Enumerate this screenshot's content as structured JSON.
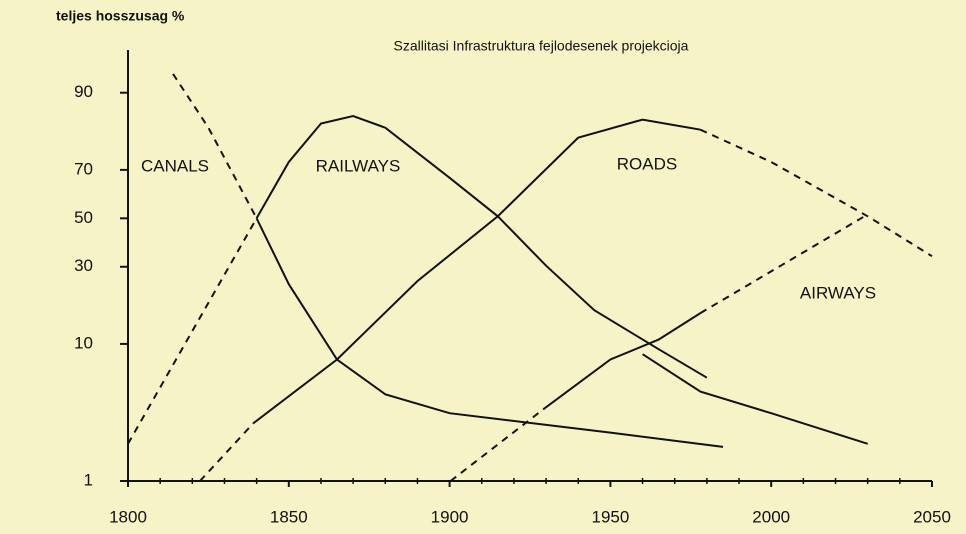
{
  "chart_data": {
    "type": "line",
    "title": "Szallitasi Infrastruktura fejlodesenek projekcioja",
    "y_label": "teljes hosszusag %",
    "y_scale": "logit",
    "xlim": [
      1800,
      2050
    ],
    "xticks": [
      1800,
      1850,
      1900,
      1950,
      2000,
      2050
    ],
    "x_minor_step": 10,
    "ylim": [
      1,
      95
    ],
    "yticks": [
      1,
      10,
      30,
      50,
      70,
      90
    ],
    "color": "#111111",
    "series": [
      {
        "name": "CANALS",
        "segments": [
          {
            "style": "dashed",
            "x": [
              1814,
              1825,
              1840
            ],
            "values": [
              92.6,
              83,
              50
            ]
          },
          {
            "style": "solid",
            "x": [
              1840,
              1850,
              1865,
              1880,
              1900,
              1950,
              1985
            ],
            "values": [
              50,
              24,
              7.8,
              4.4,
              3.2,
              2.3,
              1.8
            ]
          }
        ]
      },
      {
        "name": "RAILWAYS",
        "segments": [
          {
            "style": "dashed",
            "x": [
              1800,
              1840
            ],
            "values": [
              1.9,
              50
            ]
          },
          {
            "style": "solid",
            "x": [
              1840,
              1850,
              1860,
              1870,
              1880,
              1900,
              1915,
              1930,
              1945,
              1965,
              1980
            ],
            "values": [
              50,
              72.8,
              84,
              85.7,
              83,
              67,
              50.9,
              30.4,
              16.7,
              9.2,
              5.8
            ]
          },
          {
            "style": "solid",
            "x": [
              1960,
              1978,
              2000,
              2030
            ],
            "values": [
              8.5,
              4.6,
              3.2,
              1.9
            ]
          }
        ]
      },
      {
        "name": "ROADS",
        "segments": [
          {
            "style": "dashed",
            "x": [
              1822.4,
              1839
            ],
            "values": [
              1,
              2.7
            ]
          },
          {
            "style": "solid",
            "x": [
              1839,
              1865,
              1890,
              1915,
              1940,
              1960,
              1978
            ],
            "values": [
              2.7,
              7.8,
              25,
              50.9,
              80.4,
              84.9,
              82.5
            ]
          },
          {
            "style": "dashed",
            "x": [
              1978,
              2000,
              2030,
              2050
            ],
            "values": [
              82.5,
              72.8,
              50.9,
              34
            ]
          }
        ]
      },
      {
        "name": "AIRWAYS",
        "segments": [
          {
            "style": "dashed",
            "x": [
              1900.3,
              1929.7
            ],
            "values": [
              1,
              3.5
            ]
          },
          {
            "style": "solid",
            "x": [
              1929.7,
              1950,
              1965,
              1978
            ],
            "values": [
              3.5,
              7.8,
              10.7,
              16
            ]
          },
          {
            "style": "dashed",
            "x": [
              1978,
              2030
            ],
            "values": [
              16,
              51.7
            ]
          }
        ]
      }
    ]
  }
}
